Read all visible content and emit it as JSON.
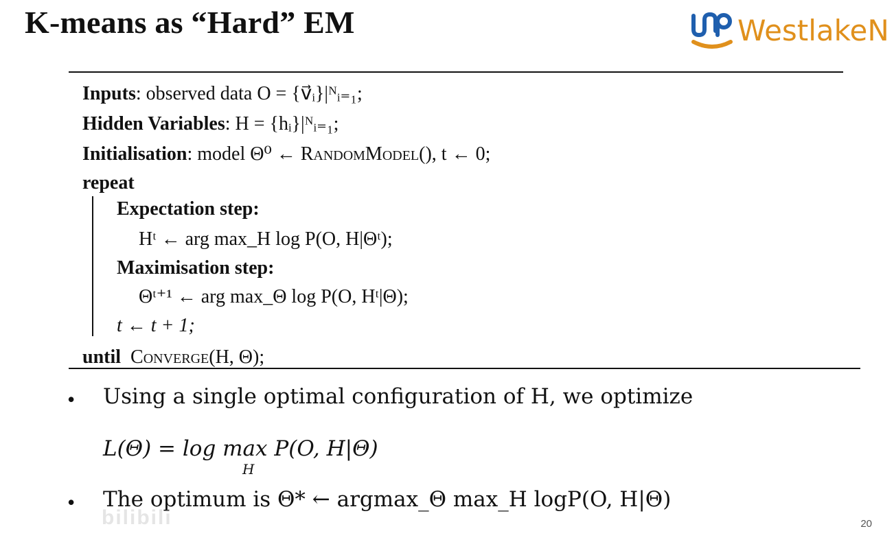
{
  "slide": {
    "title": "K-means as “Hard” EM",
    "logo_text": "WestlakeN",
    "page_number": "20",
    "watermark": "bilibili"
  },
  "algorithm": {
    "inputs_label": "Inputs",
    "inputs_text": ": observed data O = {v⃗ᵢ}|ᴺᵢ₌₁;",
    "hidden_label": "Hidden Variables",
    "hidden_text": ": H = {hᵢ}|ᴺᵢ₌₁;",
    "init_label": "Initialisation",
    "init_text_1": ": model Θ⁰ ← ",
    "init_func": "RandomModel",
    "init_text_2": "(), t ← 0;",
    "repeat_label": "repeat",
    "expectation_label": "Expectation step:",
    "expectation_formula": "Hᵗ ← arg max_H log P(O, H|Θᵗ);",
    "maximisation_label": "Maximisation step:",
    "maximisation_formula": "Θᵗ⁺¹ ← arg max_Θ log P(O, Hᵗ|Θ);",
    "increment": "t ← t + 1;",
    "until_label": "until",
    "until_func": "Converge",
    "until_args": "(H, Θ);"
  },
  "bullets": [
    {
      "text": "Using a single optimal configuration of H, we optimize"
    },
    {
      "text": "The optimum is Θ* ← argmax_Θ max_H logP(O, H|Θ)"
    }
  ],
  "equation": {
    "lhs": "L(Θ) = log max",
    "sub": "H",
    "rhs": " P(O, H|Θ)"
  },
  "colors": {
    "logo_orange": "#e0901c",
    "logo_blue": "#1f5fae",
    "text": "#111111"
  }
}
